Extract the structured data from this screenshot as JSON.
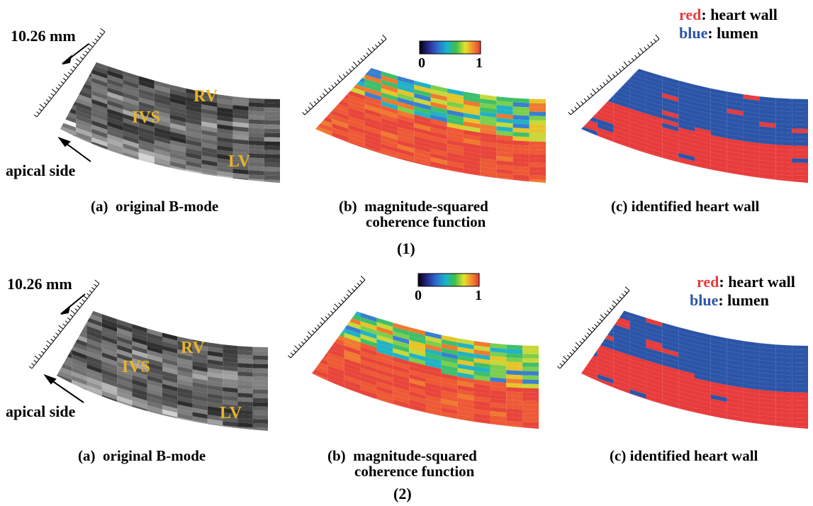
{
  "rows": [
    {
      "row_label": "(1)",
      "scale_label": "10.26 mm",
      "apical_label": "apical side",
      "anatomy": {
        "rv": "RV",
        "ivs": "IVS",
        "lv": "LV"
      },
      "colorbar": {
        "min": "0",
        "max": "1"
      },
      "legend": {
        "red_word": "red",
        "red_text": ": heart wall",
        "blue_word": "blue",
        "blue_text": ": lumen"
      },
      "captions": {
        "a_tag": "(a)",
        "a_text": "original B-mode",
        "b_tag": "(b)",
        "b_line1": "magnitude-squared",
        "b_line2": "coherence function",
        "c_tag": "(c)",
        "c_text": "identified heart wall"
      }
    },
    {
      "row_label": "(2)",
      "scale_label": "10.26 mm",
      "apical_label": "apical side",
      "anatomy": {
        "rv": "RV",
        "ivs": "IVS",
        "lv": "LV"
      },
      "colorbar": {
        "min": "0",
        "max": "1"
      },
      "legend": {
        "red_word": "red",
        "red_text": ": heart wall",
        "blue_word": "blue",
        "blue_text": ": lumen"
      },
      "captions": {
        "a_tag": "(a)",
        "a_text": "original B-mode",
        "b_tag": "(b)",
        "b_line1": "magnitude-squared",
        "b_line2": "coherence function",
        "c_tag": "(c)",
        "c_text": "identified heart wall"
      }
    }
  ],
  "colors": {
    "heart_wall_red": "#e83c3c",
    "lumen_blue": "#2c55a8",
    "anatomy_label": "#e8b42a"
  }
}
